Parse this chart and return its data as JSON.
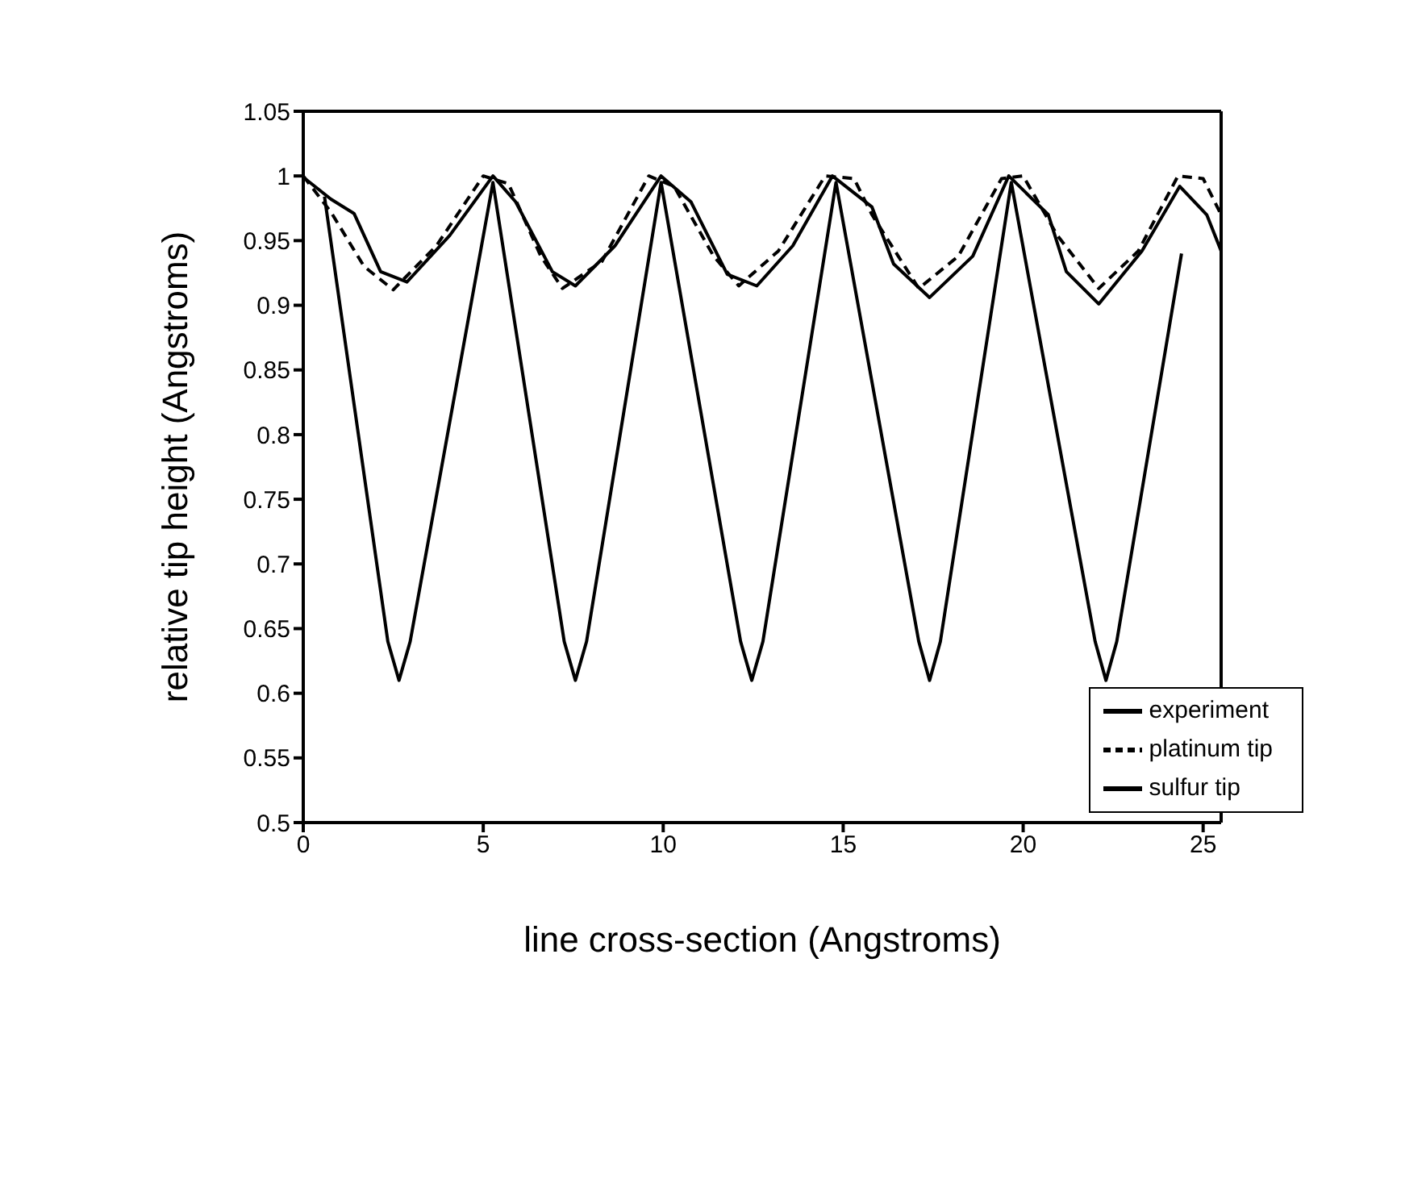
{
  "chart_data": {
    "type": "line",
    "xlabel": "line cross-section (Angstroms)",
    "ylabel": "relative tip height (Angstroms)",
    "xlim": [
      0,
      25.5
    ],
    "xticks": [
      0,
      5,
      10,
      15,
      20,
      25
    ],
    "ylim": [
      0.5,
      1.05
    ],
    "yticks": [
      0.5,
      0.55,
      0.6,
      0.65,
      0.7,
      0.75,
      0.8,
      0.85,
      0.9,
      0.95,
      1,
      1.05
    ],
    "legend": "bottom right",
    "marker": "none",
    "series": [
      {
        "name": "experiment",
        "color": "#000000",
        "line_style": "solid",
        "x": [
          0,
          0.77,
          1.41,
          2.15,
          2.88,
          4.07,
          5.27,
          5.9,
          6.92,
          7.56,
          8.66,
          9.94,
          10.77,
          11.78,
          12.6,
          13.6,
          14.7,
          15.8,
          16.4,
          17.4,
          18.6,
          19.6,
          20.7,
          21.2,
          22.1,
          23.3,
          24.35,
          25.1,
          25.5
        ],
        "values": [
          0.999,
          0.982,
          0.971,
          0.926,
          0.918,
          0.954,
          1.0,
          0.98,
          0.926,
          0.915,
          0.946,
          1.0,
          0.98,
          0.924,
          0.915,
          0.946,
          1.0,
          0.976,
          0.932,
          0.906,
          0.938,
          1.0,
          0.97,
          0.926,
          0.901,
          0.942,
          0.992,
          0.97,
          0.942
        ]
      },
      {
        "name": "platinum tip",
        "color": "#000000",
        "line_style": "dashed",
        "x": [
          0,
          0.77,
          1.69,
          2.5,
          3.7,
          5.0,
          5.7,
          6.6,
          7.2,
          8.3,
          9.6,
          10.3,
          11.4,
          12.1,
          13.2,
          14.5,
          15.3,
          15.8,
          17.1,
          18.2,
          19.4,
          20.0,
          20.95,
          22.1,
          23.2,
          24.3,
          25.0,
          25.5
        ],
        "values": [
          1.0,
          0.972,
          0.93,
          0.912,
          0.946,
          1.0,
          0.994,
          0.938,
          0.913,
          0.934,
          1.0,
          0.992,
          0.938,
          0.915,
          0.942,
          1.0,
          0.998,
          0.97,
          0.913,
          0.938,
          0.998,
          1.0,
          0.954,
          0.913,
          0.942,
          1.0,
          0.998,
          0.97
        ]
      },
      {
        "name": "sulfur tip",
        "color": "#000000",
        "line_style": "solid",
        "x": [
          0.59,
          2.35,
          2.66,
          2.97,
          5.27,
          7.25,
          7.56,
          7.87,
          9.94,
          12.15,
          12.46,
          12.77,
          14.8,
          17.1,
          17.4,
          17.7,
          19.67,
          22.0,
          22.3,
          22.6,
          24.4
        ],
        "values": [
          0.984,
          0.64,
          0.61,
          0.64,
          0.995,
          0.64,
          0.61,
          0.64,
          0.995,
          0.64,
          0.61,
          0.64,
          0.995,
          0.64,
          0.61,
          0.64,
          0.995,
          0.64,
          0.61,
          0.64,
          0.94
        ]
      }
    ]
  }
}
